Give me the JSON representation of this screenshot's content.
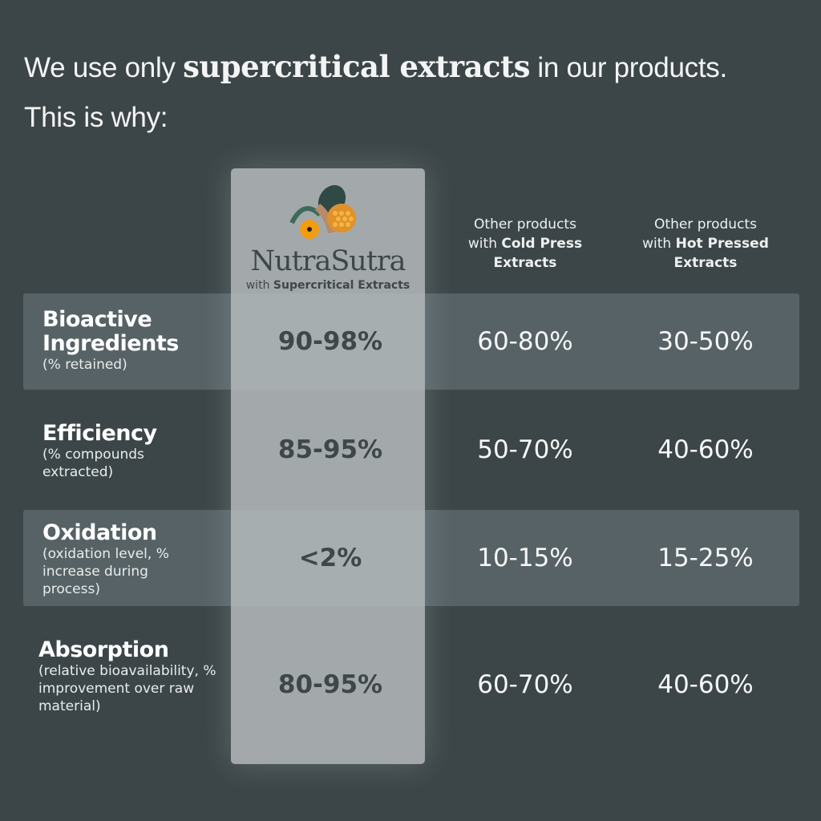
{
  "headline": {
    "part1": "We use only ",
    "emph": "supercritical extracts",
    "part2": " in our products.",
    "line2": "This is why:"
  },
  "brand": {
    "name": "NutraSutra",
    "sub_prefix": "with ",
    "sub_bold": "Supercritical Extracts"
  },
  "columns": [
    {
      "line1": "Other products",
      "line2": "with ",
      "bold": "Cold Press",
      "line3": "Extracts"
    },
    {
      "line1": "Other products",
      "line2": "with ",
      "bold": "Hot Pressed",
      "line3": "Extracts"
    }
  ],
  "rows": [
    {
      "title": "Bioactive Ingredients",
      "sub": "(% retained)",
      "ns": "90-98%",
      "cold": "60-80%",
      "hot": "30-50%"
    },
    {
      "title": "Efficiency",
      "sub": "(% compounds extracted)",
      "ns": "85-95%",
      "cold": "50-70%",
      "hot": "40-60%"
    },
    {
      "title": "Oxidation",
      "sub": "(oxidation level, % increase during process)",
      "ns": "<2%",
      "cold": "10-15%",
      "hot": "15-25%"
    },
    {
      "title": "Absorption",
      "sub": "(relative bioavailability, % improvement over raw material)",
      "ns": "80-95%",
      "cold": "60-70%",
      "hot": "40-60%"
    }
  ],
  "colors": {
    "background": "#3c4648",
    "band": "#566266",
    "highlight": "#b9c0c1",
    "text_dark": "#3d4749",
    "accent_orange": "#f39c12"
  }
}
